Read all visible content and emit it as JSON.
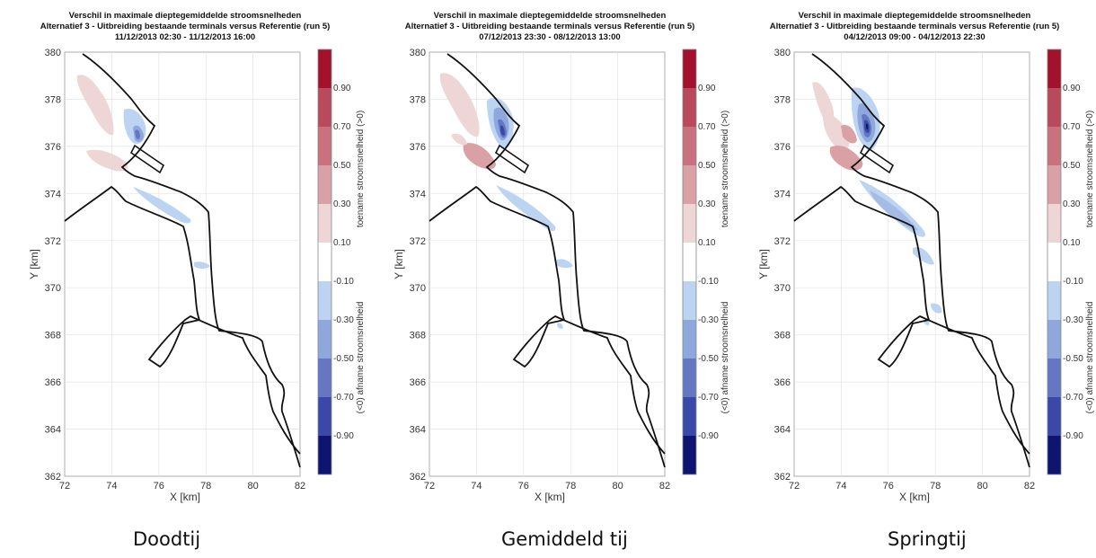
{
  "figure": {
    "title_line1": "Verschil in maximale dieptegemiddelde stroomsnelheden",
    "title_line2": "Alternatief 3 - Uitbreiding bestaande terminals versus Referentie (run 5)",
    "xlabel": "X [km]",
    "ylabel": "Y [km]",
    "x_ticks": [
      "72",
      "74",
      "76",
      "78",
      "80",
      "82"
    ],
    "y_ticks": [
      "380",
      "378",
      "376",
      "374",
      "372",
      "370",
      "368",
      "366",
      "364",
      "362"
    ],
    "xlim": [
      72,
      82
    ],
    "ylim": [
      362,
      380
    ],
    "grid": true
  },
  "colorbar": {
    "upper_label": "toename stroomsnelheid (>0)",
    "lower_label": "(<0) afname stroomsnelheid",
    "tick_labels": [
      "0.90",
      "0.70",
      "0.50",
      "0.30",
      "0.10",
      "-0.10",
      "-0.30",
      "-0.50",
      "-0.70",
      "-0.90"
    ],
    "bands": [
      {
        "label": "> 0.90",
        "color": "#a3122c"
      },
      {
        "label": "0.70 – 0.90",
        "color": "#b94a5c"
      },
      {
        "label": "0.50 – 0.70",
        "color": "#c9727d"
      },
      {
        "label": "0.30 – 0.50",
        "color": "#d9a0a5"
      },
      {
        "label": "0.10 – 0.30",
        "color": "#eed6d6"
      },
      {
        "label": "-0.10 – 0.10",
        "color": "#ffffff"
      },
      {
        "label": "-0.30 – -0.10",
        "color": "#bcd3f1"
      },
      {
        "label": "-0.50 – -0.30",
        "color": "#8fa8dc"
      },
      {
        "label": "-0.70 – -0.50",
        "color": "#6577c2"
      },
      {
        "label": "-0.90 – -0.70",
        "color": "#3a48a8"
      },
      {
        "label": "< -0.90",
        "color": "#0d1570"
      }
    ]
  },
  "panels": [
    {
      "period": "11/12/2013 02:30 - 11/12/2013 16:00",
      "caption": "Doodtij"
    },
    {
      "period": "07/12/2013 23:30 - 08/12/2013 13:00",
      "caption": "Gemiddeld tij"
    },
    {
      "period": "04/12/2013 09:00 - 04/12/2013 22:30",
      "caption": "Springtij"
    }
  ]
}
